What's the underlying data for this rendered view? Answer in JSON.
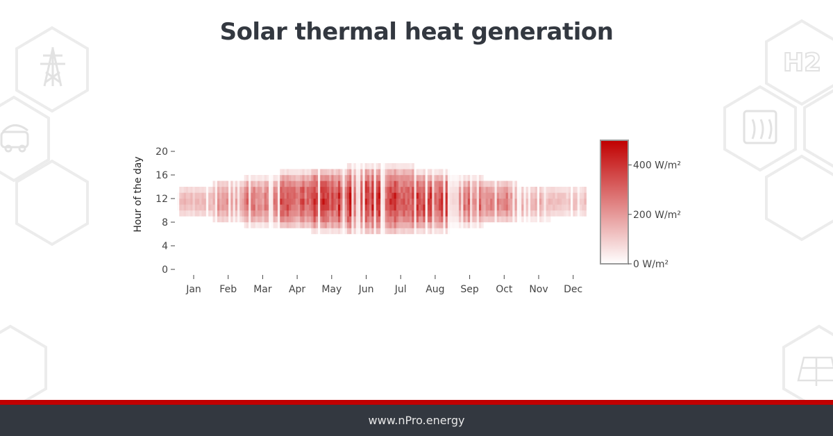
{
  "colors": {
    "footer_bg": "#333840",
    "footer_text": "#e8e8e8",
    "stripe": "#c00000",
    "heat_max": "#c00000",
    "heat_min": "#ffffff",
    "decor_hex": "#ececec"
  },
  "decor_icons": [
    "power-tower-icon",
    "electric-car-icon",
    "hydrogen-h2-icon",
    "heat-flow-icon",
    "solar-panel-icon"
  ],
  "decor_h2_label": "H2",
  "footer": {
    "url": "www.nPro.energy"
  },
  "chart_data": {
    "type": "heatmap",
    "title": "Solar thermal heat generation",
    "xlabel": "",
    "ylabel": "Hour of the day",
    "x_tick_labels": [
      "Jan",
      "Feb",
      "Mar",
      "Apr",
      "May",
      "Jun",
      "Jul",
      "Aug",
      "Sep",
      "Oct",
      "Nov",
      "Dec"
    ],
    "x_unit": "day of year",
    "ylim": [
      0,
      24
    ],
    "y_ticks": [
      0,
      4,
      8,
      12,
      16,
      20
    ],
    "grid": false,
    "colorscale": {
      "min_color": "#ffffff",
      "max_color": "#c00000",
      "zmin": 0,
      "zmax": 500,
      "tick_values": [
        0,
        200,
        400
      ],
      "tick_labels": [
        "0 W/m²",
        "200 W/m²",
        "400 W/m²"
      ],
      "placement": "right"
    },
    "monthly_profile": [
      {
        "month": "Jan",
        "start_hour": 8.5,
        "end_hour": 14.5,
        "peak": 150
      },
      {
        "month": "Feb",
        "start_hour": 7.5,
        "end_hour": 15.5,
        "peak": 260
      },
      {
        "month": "Mar",
        "start_hour": 7.0,
        "end_hour": 16.0,
        "peak": 300
      },
      {
        "month": "Apr",
        "start_hour": 6.5,
        "end_hour": 17.0,
        "peak": 400
      },
      {
        "month": "May",
        "start_hour": 6.0,
        "end_hour": 17.5,
        "peak": 440
      },
      {
        "month": "Jun",
        "start_hour": 5.5,
        "end_hour": 18.0,
        "peak": 460
      },
      {
        "month": "Jul",
        "start_hour": 5.5,
        "end_hour": 18.0,
        "peak": 450
      },
      {
        "month": "Aug",
        "start_hour": 6.0,
        "end_hour": 17.0,
        "peak": 420
      },
      {
        "month": "Sep",
        "start_hour": 7.0,
        "end_hour": 16.0,
        "peak": 360
      },
      {
        "month": "Oct",
        "start_hour": 7.5,
        "end_hour": 15.5,
        "peak": 300
      },
      {
        "month": "Nov",
        "start_hour": 8.0,
        "end_hour": 14.5,
        "peak": 200
      },
      {
        "month": "Dec",
        "start_hour": 8.5,
        "end_hour": 14.5,
        "peak": 140
      }
    ]
  }
}
